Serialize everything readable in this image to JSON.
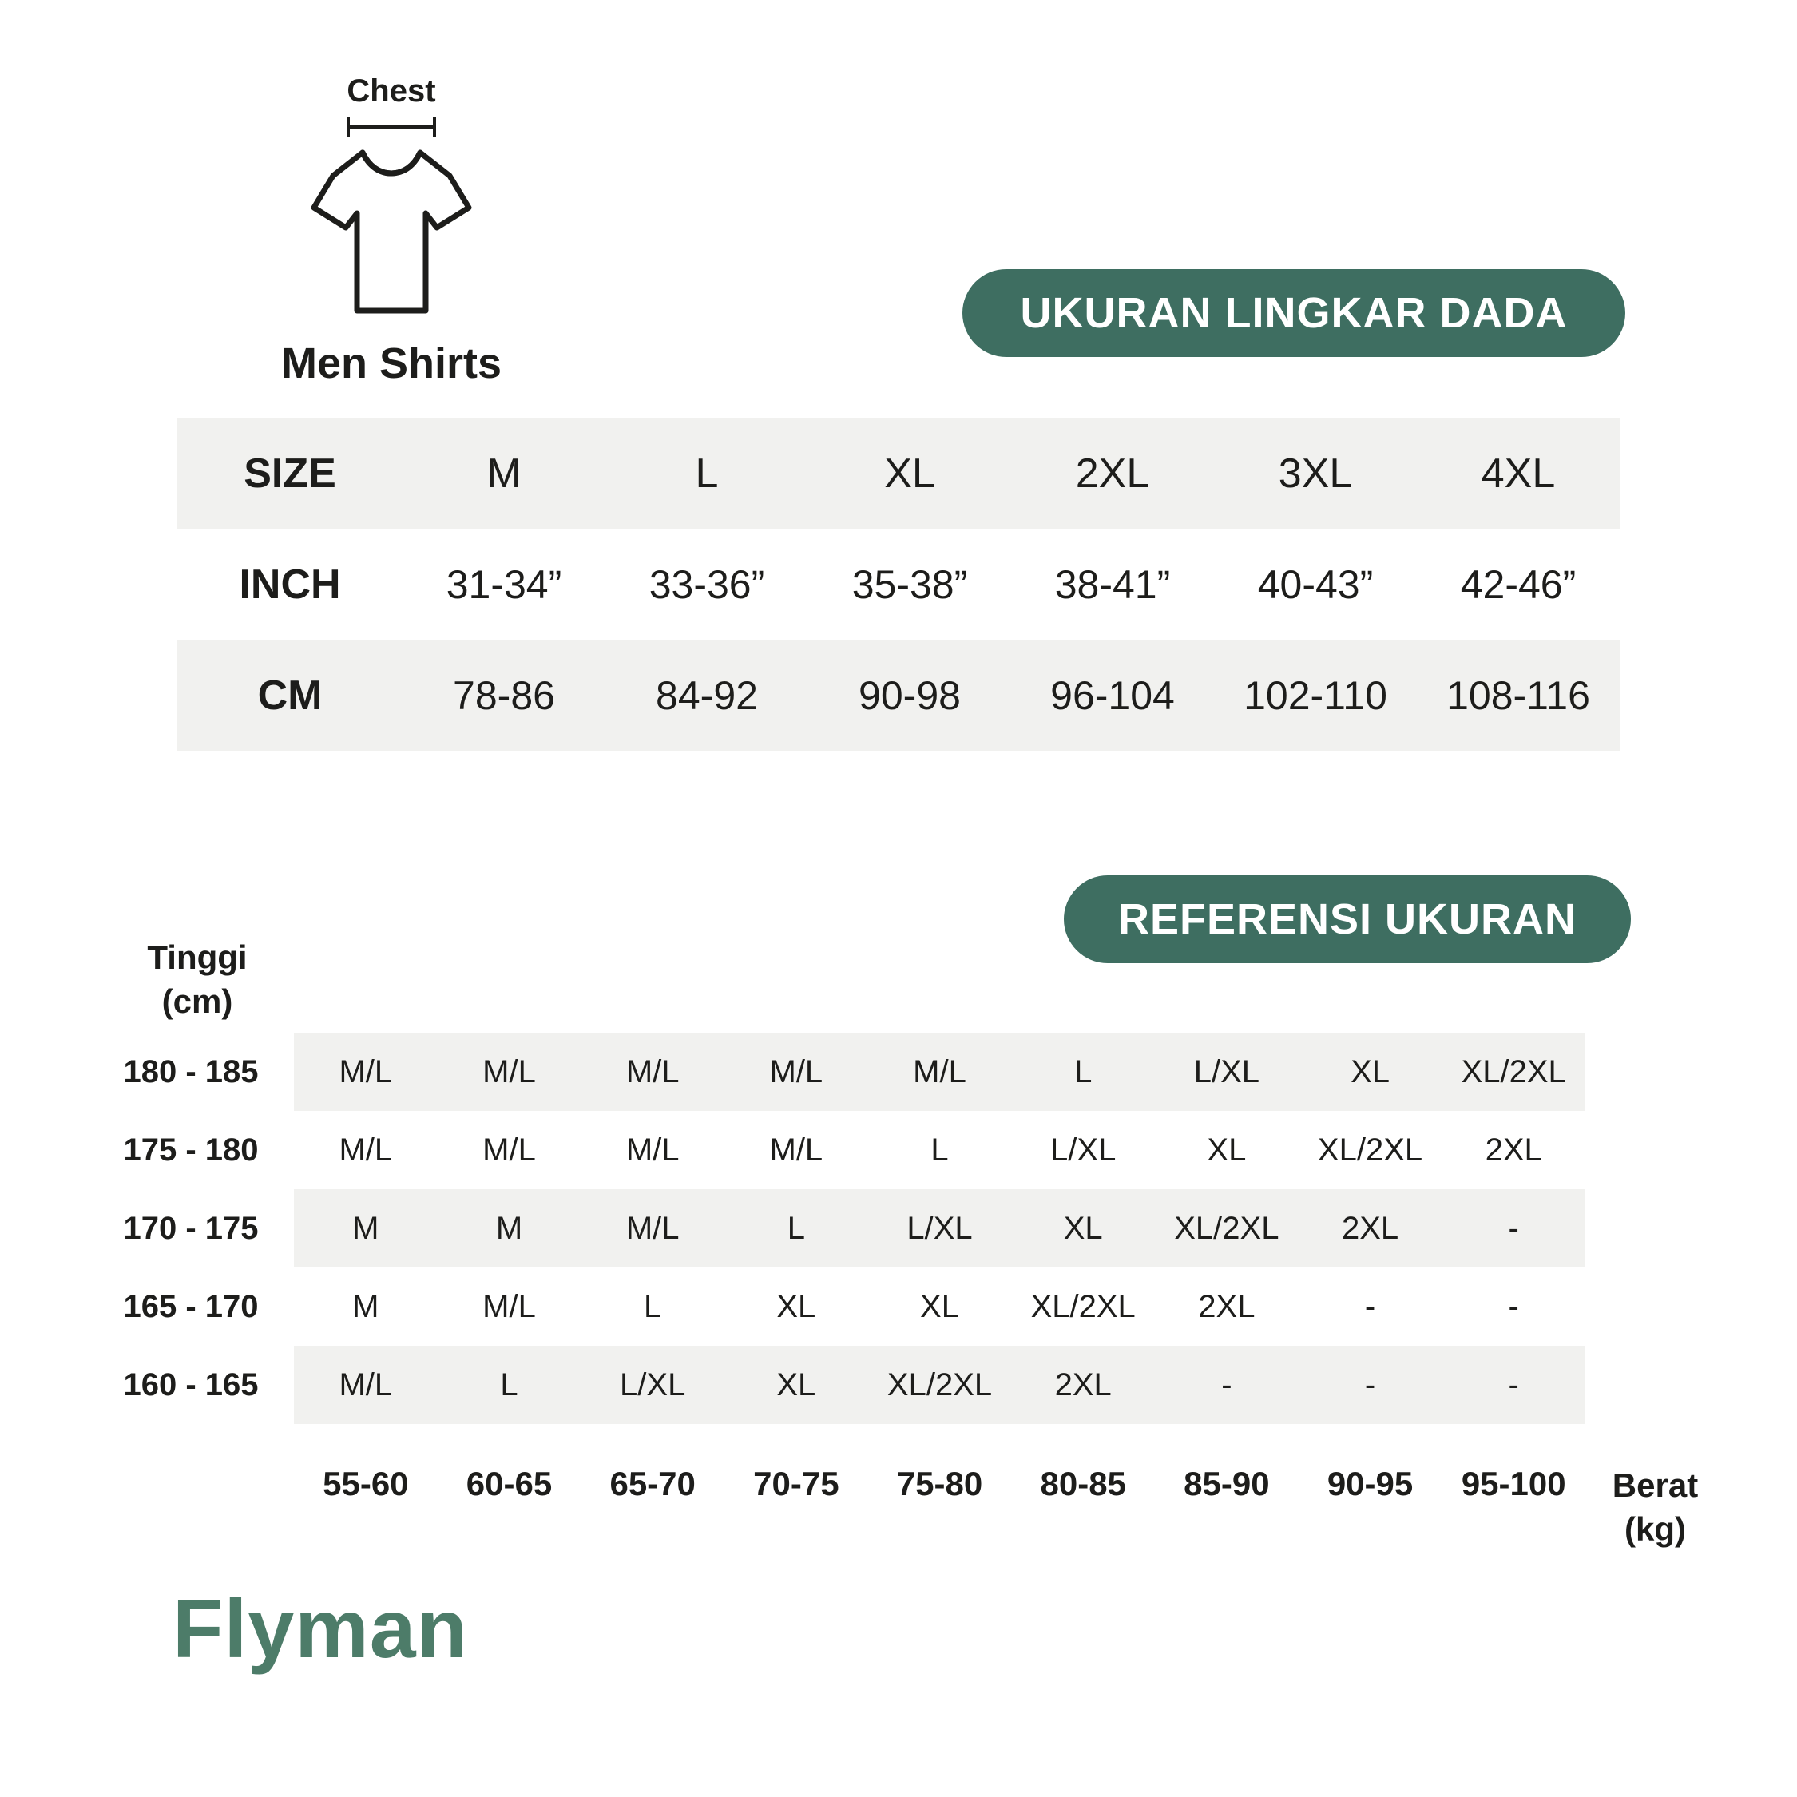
{
  "colors": {
    "accent_green": "#3e6e61",
    "logo_green": "#4d7c69",
    "row_gray": "#f1f1ef",
    "text": "#1d1d1b"
  },
  "header": {
    "chest_label": "Chest",
    "product_label": "Men Shirts"
  },
  "badges": {
    "chest_size": "UKURAN LINGKAR DADA",
    "size_reference": "REFERENSI UKURAN"
  },
  "size_table": {
    "rows": [
      {
        "label": "SIZE",
        "values": [
          "M",
          "L",
          "XL",
          "2XL",
          "3XL",
          "4XL"
        ]
      },
      {
        "label": "INCH",
        "values": [
          "31-34”",
          "33-36”",
          "35-38”",
          "38-41”",
          "40-43”",
          "42-46”"
        ]
      },
      {
        "label": "CM",
        "values": [
          "78-86",
          "84-92",
          "90-98",
          "96-104",
          "102-110",
          "108-116"
        ]
      }
    ]
  },
  "reference_table": {
    "height_label": [
      "Tinggi",
      "(cm)"
    ],
    "weight_label": [
      "Berat",
      "(kg)"
    ],
    "rows": [
      {
        "height": "180 - 185",
        "values": [
          "M/L",
          "M/L",
          "M/L",
          "M/L",
          "M/L",
          "L",
          "L/XL",
          "XL",
          "XL/2XL"
        ]
      },
      {
        "height": "175 - 180",
        "values": [
          "M/L",
          "M/L",
          "M/L",
          "M/L",
          "L",
          "L/XL",
          "XL",
          "XL/2XL",
          "2XL"
        ]
      },
      {
        "height": "170 - 175",
        "values": [
          "M",
          "M",
          "M/L",
          "L",
          "L/XL",
          "XL",
          "XL/2XL",
          "2XL",
          "-"
        ]
      },
      {
        "height": "165 - 170",
        "values": [
          "M",
          "M/L",
          "L",
          "XL",
          "XL",
          "XL/2XL",
          "2XL",
          "-",
          "-"
        ]
      },
      {
        "height": "160 - 165",
        "values": [
          "M/L",
          "L",
          "L/XL",
          "XL",
          "XL/2XL",
          "2XL",
          "-",
          "-",
          "-"
        ]
      }
    ],
    "weights": [
      "55-60",
      "60-65",
      "65-70",
      "70-75",
      "75-80",
      "80-85",
      "85-90",
      "90-95",
      "95-100"
    ]
  },
  "logo_text": "Flyman"
}
